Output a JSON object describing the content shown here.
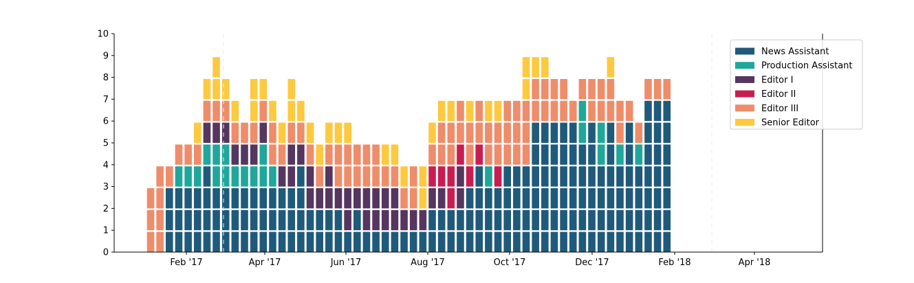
{
  "chart_data": {
    "type": "bar",
    "stacked": true,
    "layout": "stacked unit blocks per week",
    "title": "",
    "xlabel": "",
    "ylabel": "",
    "ylim": [
      0,
      10
    ],
    "yticks": [
      "0",
      "1",
      "2",
      "3",
      "4",
      "5",
      "6",
      "7",
      "8",
      "9",
      "10"
    ],
    "xticks": [
      "Feb '17",
      "Apr '17",
      "Jun '17",
      "Aug '17",
      "Oct '17",
      "Dec '17",
      "Feb '18",
      "Apr '18"
    ],
    "grid": false,
    "legend": "top-right",
    "series": [
      {
        "name": "News Assistant",
        "color": "#1f5a7a"
      },
      {
        "name": "Production Assistant",
        "color": "#1fa79a"
      },
      {
        "name": "Editor I",
        "color": "#55365f"
      },
      {
        "name": "Editor II",
        "color": "#c91d52"
      },
      {
        "name": "Editor III",
        "color": "#ef8c6a"
      },
      {
        "name": "Senior Editor",
        "color": "#fdc93f"
      }
    ],
    "weeks": [
      "4,4,4",
      "4,4,4,4",
      "0,0,0,4",
      "0,0,0,1,4",
      "0,0,0,1,4",
      "0,0,0,1,4,5",
      "0,0,0,0,1,2,4,5",
      "0,0,0,1,1,2,4,5,5",
      "0,0,0,1,1,2,4,5",
      "0,0,0,1,2,4,5",
      "0,0,0,1,2,4",
      "0,0,0,1,2,4,5,5",
      "0,0,0,1,1,2,4,5",
      "0,0,0,1,4,4,5",
      "0,0,0,2,4,5",
      "0,0,0,2,2,4,5,5",
      "0,0,0,0,2,4,5",
      "0,0,2,2,4,5",
      "0,0,2,4,5",
      "0,0,2,2,4,5",
      "0,0,2,4,4,5",
      "0,2,2,4,4,5",
      "0,0,2,4,4",
      "0,2,2,4,4",
      "0,2,2,4,4",
      "0,2,2,4,5",
      "0,2,2,4,5",
      "0,2,4,5",
      "0,2,4,4",
      "0,2,5,5",
      "0,0,2,3,4,5",
      "0,0,2,3,4,4,5",
      "0,0,3,3,4,4,5",
      "0,0,2,2,3,4,4",
      "0,0,0,3,4,4,5",
      "0,0,0,0,3,4,4",
      "0,0,0,1,4,4,5",
      "0,0,0,3,4,4,5",
      "0,0,0,0,4,4,4",
      "0,0,0,0,4,4,4",
      "0,0,0,0,4,4,4,5,5",
      "0,0,0,0,0,0,4,4,5",
      "0,0,0,0,0,0,4,4,5",
      "0,0,0,0,0,0,4,4",
      "0,0,0,0,0,0,4,4",
      "0,0,0,0,0,0,4",
      "0,0,0,0,0,1,1,4",
      "0,0,0,0,0,0,4,4",
      "0,0,0,0,1,1,4,4",
      "0,0,0,0,0,0,4,4,5",
      "0,0,0,0,1,4,4",
      "0,0,0,0,0,0,4",
      "0,0,0,0,1,4",
      "0,0,0,0,0,0,0,4",
      "0,0,0,0,0,0,0,4",
      "0,0,0,0,0,0,0,4"
    ]
  }
}
